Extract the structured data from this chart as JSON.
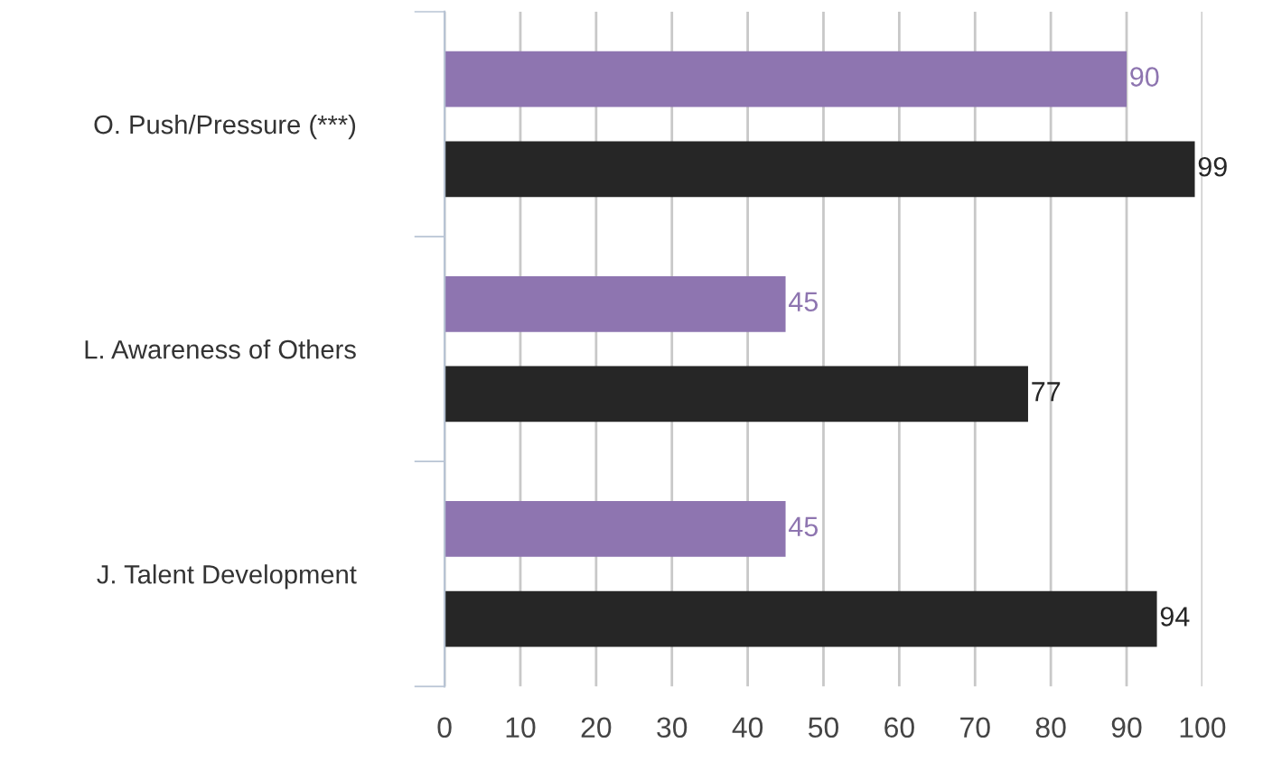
{
  "chart_data": {
    "type": "bar",
    "orientation": "horizontal",
    "categories": [
      "O. Push/Pressure (***)",
      "L. Awareness of Others",
      "J. Talent Development"
    ],
    "series": [
      {
        "color": "#8e75b0",
        "values": [
          90,
          45,
          45
        ]
      },
      {
        "color": "#262626",
        "values": [
          99,
          77,
          94
        ]
      }
    ],
    "xlim": [
      0,
      100
    ],
    "xticks": [
      0,
      10,
      20,
      30,
      40,
      50,
      60,
      70,
      80,
      90,
      100
    ],
    "grid": "x",
    "data_labels": true
  }
}
